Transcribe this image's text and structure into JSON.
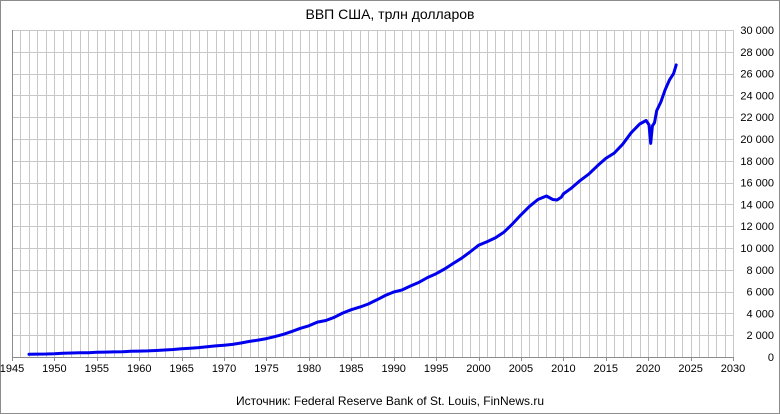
{
  "chart_data": {
    "type": "line",
    "title": "ВВП США, трлн долларов",
    "source": "Источник: Federal Reserve Bank of St. Louis, FinNews.ru",
    "xlim": [
      1945,
      2030
    ],
    "ylim": [
      0,
      30000
    ],
    "x_ticks": [
      "1945",
      "1950",
      "1955",
      "1960",
      "1965",
      "1970",
      "1975",
      "1980",
      "1985",
      "1990",
      "1995",
      "2000",
      "2005",
      "2010",
      "2015",
      "2020",
      "2025",
      "2030"
    ],
    "y_ticks": [
      "0",
      "2 000",
      "4 000",
      "6 000",
      "8 000",
      "10 000",
      "12 000",
      "14 000",
      "16 000",
      "18 000",
      "20 000",
      "22 000",
      "24 000",
      "26 000",
      "28 000",
      "30 000"
    ],
    "x_tick_values": [
      1945,
      1950,
      1955,
      1960,
      1965,
      1970,
      1975,
      1980,
      1985,
      1990,
      1995,
      2000,
      2005,
      2010,
      2015,
      2020,
      2025,
      2030
    ],
    "y_tick_values": [
      0,
      2000,
      4000,
      6000,
      8000,
      10000,
      12000,
      14000,
      16000,
      18000,
      20000,
      22000,
      24000,
      26000,
      28000,
      30000
    ],
    "grid": true,
    "colors": {
      "line": "#0000ee",
      "grid": "#c8c8c8",
      "axis": "#8c8c8c"
    },
    "series": [
      {
        "x": [
          1947,
          1948,
          1949,
          1950,
          1951,
          1952,
          1953,
          1954,
          1955,
          1956,
          1957,
          1958,
          1959,
          1960,
          1961,
          1962,
          1963,
          1964,
          1965,
          1966,
          1967,
          1968,
          1969,
          1970,
          1971,
          1972,
          1973,
          1974,
          1975,
          1976,
          1977,
          1978,
          1979,
          1980,
          1981,
          1982,
          1983,
          1984,
          1985,
          1986,
          1987,
          1988,
          1989,
          1990,
          1991,
          1992,
          1993,
          1994,
          1995,
          1996,
          1997,
          1998,
          1999,
          2000,
          2001,
          2002,
          2003,
          2004,
          2005,
          2006,
          2007,
          2008,
          2008.75,
          2009.25,
          2009.75,
          2010,
          2011,
          2012,
          2013,
          2014,
          2015,
          2016,
          2017,
          2018,
          2019,
          2019.75,
          2020.1,
          2020.3,
          2020.5,
          2020.75,
          2021,
          2021.5,
          2022,
          2022.5,
          2023,
          2023.3
        ],
        "values": [
          244,
          270,
          272,
          300,
          350,
          370,
          390,
          390,
          430,
          450,
          470,
          480,
          520,
          540,
          560,
          600,
          640,
          690,
          750,
          810,
          860,
          940,
          1020,
          1080,
          1160,
          1280,
          1430,
          1550,
          1690,
          1870,
          2080,
          2350,
          2630,
          2860,
          3200,
          3350,
          3640,
          4040,
          4340,
          4580,
          4860,
          5240,
          5640,
          5960,
          6160,
          6520,
          6860,
          7290,
          7640,
          8070,
          8580,
          9060,
          9630,
          10250,
          10580,
          10940,
          11460,
          12210,
          13040,
          13820,
          14450,
          14770,
          14450,
          14400,
          14650,
          14960,
          15520,
          16200,
          16780,
          17530,
          18220,
          18710,
          19520,
          20580,
          21380,
          21700,
          21300,
          19600,
          21200,
          21500,
          22600,
          23400,
          24500,
          25400,
          26000,
          26800
        ]
      }
    ]
  }
}
